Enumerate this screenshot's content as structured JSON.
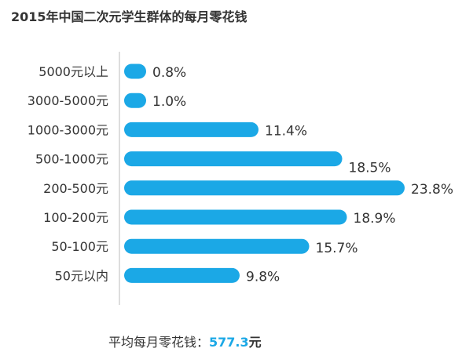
{
  "colors": {
    "bar": "#1ba8e6",
    "text": "#333333",
    "axis": "#bbbbbb",
    "accent": "#1ba8e6"
  },
  "chart_data": {
    "type": "bar",
    "orientation": "horizontal",
    "title": "2015年中国二次元学生群体的每月零花钱",
    "categories": [
      "5000元以上",
      "3000-5000元",
      "1000-3000元",
      "500-1000元",
      "200-500元",
      "100-200元",
      "50-100元",
      "50元以内"
    ],
    "values": [
      0.8,
      1.0,
      11.4,
      18.5,
      23.8,
      18.9,
      15.7,
      9.8
    ],
    "value_labels": [
      "0.8%",
      "1.0%",
      "11.4%",
      "18.5%",
      "23.8%",
      "18.9%",
      "15.7%",
      "9.8%"
    ],
    "unit": "%",
    "xlabel": "",
    "ylabel": "",
    "grid": false,
    "legend": "none"
  },
  "footer": {
    "label": "平均每月零花钱：",
    "value": "577.3",
    "unit": "元"
  }
}
